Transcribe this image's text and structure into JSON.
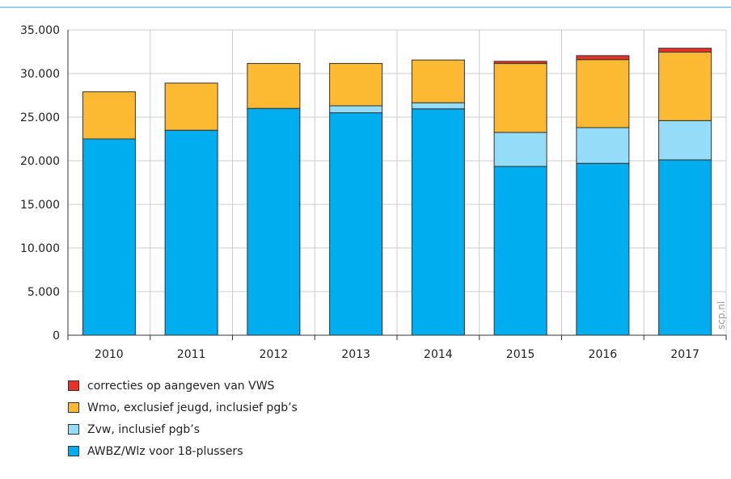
{
  "chart_data": {
    "type": "bar",
    "stacked": true,
    "categories": [
      "2010",
      "2011",
      "2012",
      "2013",
      "2014",
      "2015",
      "2016",
      "2017"
    ],
    "series": [
      {
        "name": "AWBZ/Wlz voor 18-plussers",
        "color": "#00adef",
        "values": [
          22500,
          23500,
          26000,
          25500,
          25950,
          19350,
          19700,
          20100
        ]
      },
      {
        "name": "Zvw, inclusief pgb’s",
        "color": "#94dcf7",
        "values": [
          0,
          0,
          0,
          800,
          700,
          3900,
          4100,
          4500
        ]
      },
      {
        "name": "Wmo, exclusief jeugd, inclusief pgb’s",
        "color": "#fcba33",
        "values": [
          5400,
          5400,
          5150,
          4850,
          4900,
          7900,
          7800,
          7850
        ]
      },
      {
        "name": "correcties op aangeven van VWS",
        "color": "#e8312a",
        "values": [
          0,
          0,
          0,
          0,
          0,
          250,
          450,
          450
        ]
      }
    ],
    "ylim": [
      0,
      35000
    ],
    "yticks": [
      "0",
      "5.000",
      "10.000",
      "15.000",
      "20.000",
      "25.000",
      "30.000",
      "35.000"
    ],
    "ytick_values": [
      0,
      5000,
      10000,
      15000,
      20000,
      25000,
      30000,
      35000
    ],
    "grid": true,
    "legend_position": "bottom-left",
    "legend_order": [
      "correcties op aangeven van VWS",
      "Wmo, exclusief jeugd, inclusief pgb’s",
      "Zvw, inclusief pgb’s",
      "AWBZ/Wlz voor 18-plussers"
    ],
    "title": "",
    "xlabel": "",
    "ylabel": ""
  },
  "colors": {
    "top_rule": "#3aa0d8",
    "grid": "#cccccc",
    "axis": "#333333"
  },
  "watermark": "scp.nl"
}
